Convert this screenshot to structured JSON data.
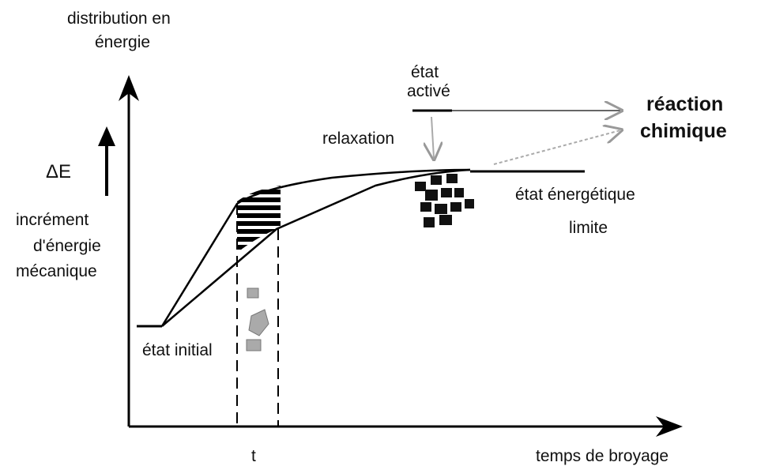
{
  "y_axis_label": [
    "distribution en",
    "énergie"
  ],
  "x_axis_label": "temps de broyage",
  "time_marker": "t",
  "delta_e": "ΔE",
  "increment_label": [
    "incrément",
    "d'énergie",
    "mécanique"
  ],
  "initial_state": "état initial",
  "activated_state": [
    "état",
    "activé"
  ],
  "relaxation": "relaxation",
  "reaction": [
    "réaction",
    "chimique"
  ],
  "limit_state": [
    "état énergétique",
    "limite"
  ]
}
